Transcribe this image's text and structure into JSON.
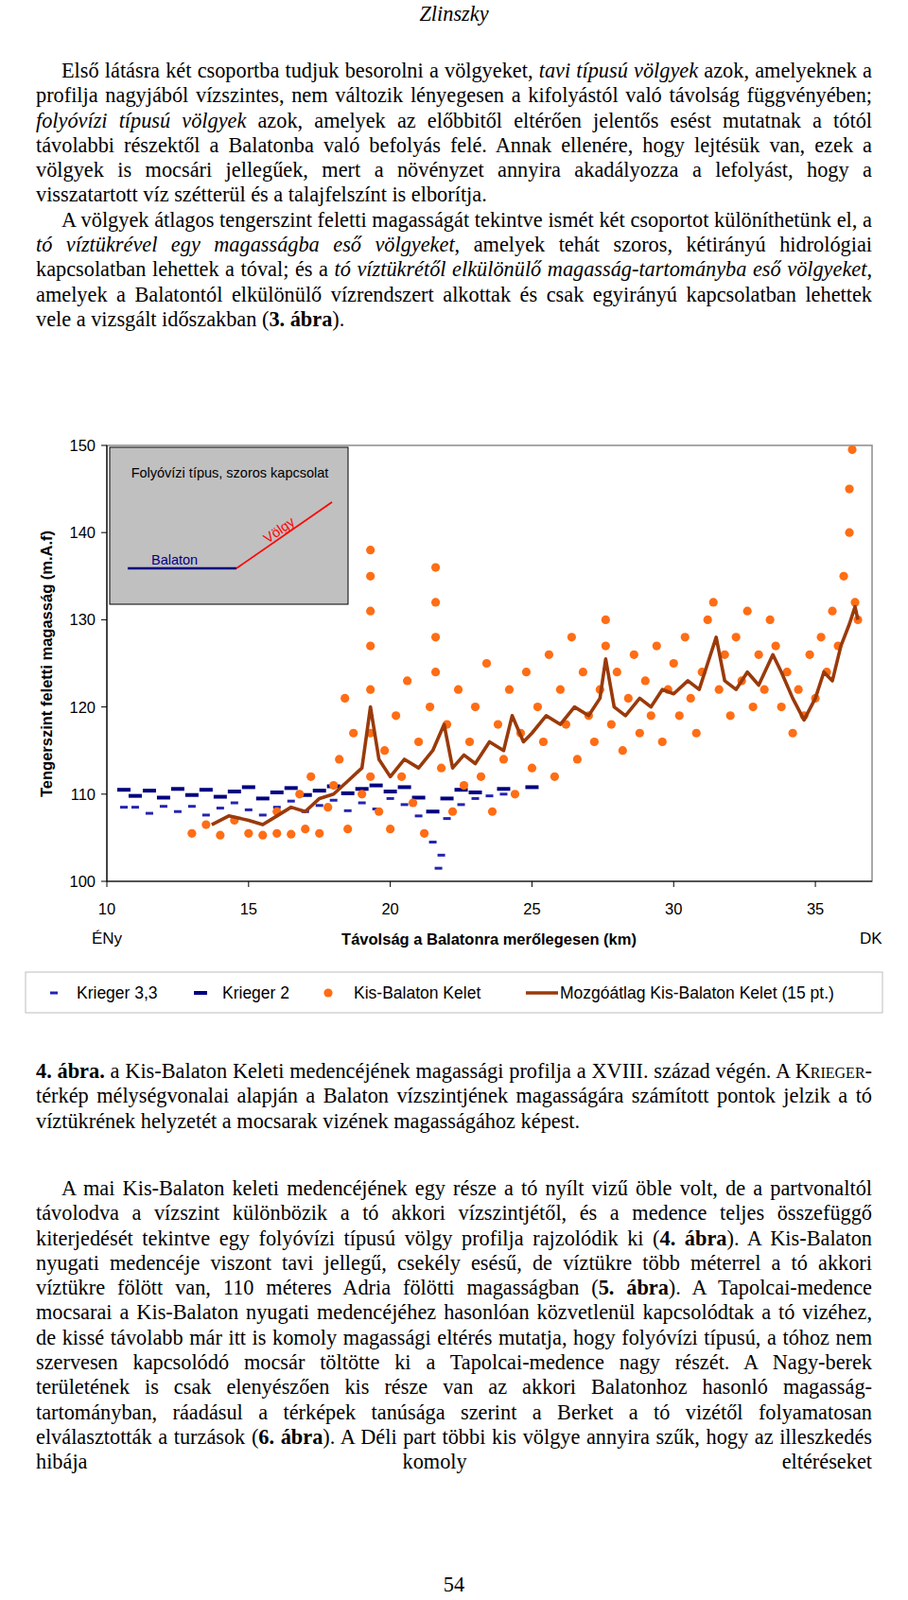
{
  "header": {
    "title": "Zlinszky"
  },
  "body_top": [
    {
      "runs": [
        {
          "text": "Első látásra két csoportba tudjuk besorolni a völgyeket, "
        },
        {
          "text": "tavi típusú völgyek",
          "style": "italic"
        },
        {
          "text": " azok, amelyeknek a profilja nagyjából vízszintes, nem változik lényegesen a kifolyástól való távolság függvényében; "
        },
        {
          "text": "folyóvízi típusú völgyek",
          "style": "italic"
        },
        {
          "text": " azok, amelyek az előbbitől eltérően jelentős esést mutatnak a tótól távolabbi részektől a Balatonba való befolyás felé. Annak ellenére, hogy lejtésük van, ezek a völgyek is mocsári jellegűek, mert a növényzet annyira akadályozza a lefolyást, hogy a visszatartott víz szétterül és a talajfelszínt is elborítja."
        }
      ]
    },
    {
      "runs": [
        {
          "text": "A völgyek átlagos tengerszint feletti magasságát tekintve ismét két csoportot különíthetünk el, a "
        },
        {
          "text": "tó víztükrével egy magasságba eső völgyeket",
          "style": "italic"
        },
        {
          "text": ", amelyek tehát szoros, kétirányú hidrológiai kapcsolatban lehettek a tóval; és a "
        },
        {
          "text": "tó víztükrétől elkülönülő magasság-tartományba eső völgyeket",
          "style": "italic"
        },
        {
          "text": ", amelyek a Balatontól elkülönülő vízrendszert alkottak és csak egyirányú kapcsolatban lehettek vele a vizsgált időszakban ("
        },
        {
          "text": "3. ábra",
          "style": "bold"
        },
        {
          "text": ")."
        }
      ]
    }
  ],
  "chart_data": {
    "type": "scatter",
    "xlabel": "Távolság a Balatonra merőlegesen (km)",
    "ylabel": "Tengerszint feletti magasság (m.A.f)",
    "annotations": {
      "inset_title": "Folyóvízi típus, szoros kapcsolat",
      "inset_lake": "Balaton",
      "inset_valley": "Völgy",
      "left_end": "ÉNy",
      "right_end": "DK"
    },
    "xlim": [
      10,
      37
    ],
    "xticks": [
      10,
      15,
      20,
      25,
      30,
      35
    ],
    "ylim": [
      100,
      150
    ],
    "yticks": [
      100,
      110,
      120,
      130,
      140,
      150
    ],
    "grid": false,
    "legend": "bottom",
    "series": [
      {
        "name": "Krieger 3,3",
        "color": "#2424b0",
        "marker": "short_dash",
        "x": [
          10.6,
          11.0,
          11.5,
          12.0,
          12.5,
          13.0,
          13.5,
          14.0,
          14.5,
          15.0,
          15.5,
          16.0,
          16.5,
          17.0,
          17.5,
          18.0,
          18.5,
          19.0,
          19.5,
          20.0,
          20.5,
          21.0,
          21.5,
          21.7,
          21.8,
          22.0,
          22.5,
          23.0,
          23.5,
          24.0
        ],
        "values": [
          108.5,
          108.5,
          107.8,
          108.6,
          108.0,
          108.6,
          107.6,
          108.4,
          109.0,
          108.2,
          107.6,
          108.5,
          109.2,
          108.0,
          108.7,
          109.3,
          108.1,
          109.0,
          108.3,
          109.5,
          108.8,
          107.5,
          104.5,
          101.5,
          103.0,
          107.2,
          108.8,
          109.5,
          109.8,
          110.0
        ]
      },
      {
        "name": "Krieger 2",
        "color": "#000080",
        "marker": "dash",
        "x": [
          10.6,
          11.0,
          11.5,
          12.0,
          12.5,
          13.0,
          13.5,
          14.0,
          14.5,
          15.0,
          15.5,
          16.0,
          16.5,
          17.0,
          17.5,
          18.0,
          18.5,
          19.0,
          19.5,
          20.0,
          20.5,
          21.0,
          21.5,
          22.0,
          22.5,
          23.0,
          24.0,
          25.0
        ],
        "values": [
          110.5,
          109.8,
          110.4,
          109.6,
          110.6,
          109.9,
          110.5,
          109.7,
          110.3,
          110.8,
          109.5,
          110.2,
          110.7,
          109.9,
          110.4,
          110.9,
          110.1,
          110.6,
          111.0,
          110.3,
          110.8,
          109.6,
          108.0,
          109.5,
          110.5,
          110.2,
          110.6,
          110.8
        ]
      },
      {
        "name": "Kis-Balaton Kelet",
        "color": "#ff6d14",
        "marker": "circle",
        "x": [
          13.0,
          13.5,
          14.0,
          14.5,
          15.0,
          15.5,
          16,
          16,
          16.5,
          16.8,
          17,
          17.2,
          17.5,
          17.8,
          18,
          18.2,
          18.4,
          18.5,
          18.7,
          19,
          19.3,
          19.3,
          19.3,
          19.3,
          19.3,
          19.3,
          19.3,
          19.6,
          19.8,
          20,
          20.2,
          20.4,
          20.6,
          20.8,
          21,
          21.2,
          21.4,
          21.6,
          21.6,
          21.6,
          21.6,
          21.8,
          22,
          22.2,
          22.4,
          22.6,
          22.8,
          23,
          23.2,
          23.4,
          23.6,
          23.8,
          24,
          24.2,
          24.4,
          24.6,
          24.8,
          25,
          25.2,
          25.4,
          25.6,
          25.8,
          26,
          26.2,
          26.4,
          26.6,
          26.8,
          27,
          27.2,
          27.4,
          27.6,
          27.6,
          27.8,
          28,
          28.2,
          28.4,
          28.6,
          28.8,
          29,
          29.2,
          29.4,
          29.6,
          29.8,
          30,
          30.2,
          30.4,
          30.6,
          30.8,
          31,
          31.2,
          31.4,
          31.6,
          31.8,
          32,
          32.2,
          32.4,
          32.6,
          32.8,
          33,
          33.2,
          33.4,
          33.6,
          33.8,
          34,
          34.2,
          34.4,
          34.6,
          34.8,
          35,
          35.2,
          35.4,
          35.6,
          35.8,
          36,
          36.2,
          36.2,
          36.3,
          36.4,
          36.5
        ],
        "values": [
          105.5,
          106.5,
          105.3,
          107.0,
          105.5,
          105.3,
          105.5,
          108,
          105.4,
          110,
          106,
          112,
          105.5,
          108.5,
          111,
          114,
          121,
          106,
          117,
          110,
          138,
          135,
          131,
          127,
          122,
          117,
          112,
          108,
          115,
          106,
          119,
          112,
          123,
          109,
          116,
          105.5,
          120,
          136,
          132,
          128,
          124,
          113,
          118,
          108,
          122,
          111,
          116,
          120,
          112,
          125,
          108,
          118,
          114,
          122,
          110,
          117,
          124,
          113,
          120,
          116,
          126,
          112,
          122,
          118,
          128,
          114,
          124,
          119,
          116,
          122,
          130,
          127,
          118,
          124,
          115,
          121,
          126,
          117,
          123,
          119,
          127,
          116,
          122,
          125,
          119,
          128,
          121,
          117,
          124,
          130,
          132,
          122,
          126,
          119,
          128,
          123,
          131,
          120,
          126,
          122,
          130,
          127,
          120,
          124,
          117,
          122,
          119,
          126,
          121,
          128,
          124,
          131,
          127,
          135,
          140,
          145,
          149.5,
          132,
          130
        ]
      },
      {
        "name": "Mozgóátlag Kis-Balaton Kelet (15 pt.)",
        "color": "#9a3a0a",
        "type": "line",
        "line_style": "solid",
        "x": [
          13.7,
          14.3,
          15,
          15.5,
          16,
          16.5,
          17,
          17.5,
          18,
          18.5,
          19,
          19.3,
          19.6,
          20,
          20.5,
          21,
          21.5,
          21.9,
          22.2,
          22.6,
          23,
          23.5,
          24,
          24.3,
          24.7,
          25,
          25.5,
          26,
          26.5,
          27,
          27.4,
          27.6,
          27.9,
          28.3,
          28.8,
          29.2,
          29.6,
          30,
          30.5,
          30.9,
          31.2,
          31.5,
          31.8,
          32.2,
          32.6,
          33,
          33.5,
          33.8,
          34.2,
          34.6,
          35,
          35.3,
          35.6,
          35.9,
          36.2,
          36.4,
          36.5
        ],
        "values": [
          106.5,
          107.5,
          107,
          106.5,
          107.5,
          108.5,
          108,
          109.5,
          110,
          111.5,
          113,
          120,
          114,
          112,
          114,
          113,
          115,
          118,
          113,
          114.5,
          113.5,
          116,
          115,
          119,
          116,
          117,
          119,
          118,
          120,
          119,
          121,
          125.5,
          120,
          119,
          121,
          120,
          122,
          121.5,
          123,
          122,
          125,
          128,
          123,
          122,
          124,
          122.5,
          126,
          124,
          121,
          118.5,
          121,
          124,
          123,
          127,
          129.5,
          131.5,
          130
        ]
      }
    ]
  },
  "caption": {
    "runs": [
      {
        "text": "4. ábra.",
        "style": "bold"
      },
      {
        "text": " a Kis-Balaton Keleti medencéjének magassági profilja a XVIII. század végén. A "
      },
      {
        "text": "Krieger",
        "style": "smallcaps"
      },
      {
        "text": "-térkép mélységvonalai alapján a Balaton vízszintjének magasságára számított pontok jelzik a tó víztükrének helyzetét a mocsarak vizének magasságához képest."
      }
    ]
  },
  "body_bottom": [
    {
      "runs": [
        {
          "text": "A mai Kis-Balaton keleti medencéjének egy része a tó nyílt vizű öble volt, de a partvonaltól távolodva a vízszint különbözik a tó akkori vízszintjétől, és a medence teljes összefüggő kiterjedését tekintve egy folyóvízi típusú völgy profilja rajzolódik ki ("
        },
        {
          "text": "4. ábra",
          "style": "bold"
        },
        {
          "text": "). A Kis-Balaton nyugati medencéje viszont tavi jellegű, csekély esésű, de víztükre több méterrel a tó akkori víztükre fölött van, 110 méteres Adria fölötti magasságban ("
        },
        {
          "text": "5. ábra",
          "style": "bold"
        },
        {
          "text": "). A Tapolcai-medence mocsarai a Kis-Balaton nyugati medencéjéhez hasonlóan közvetlenül kapcsolódtak a tó vizéhez, de kissé távolabb már itt is komoly magassági eltérés mutatja, hogy folyóvízi típusú, a tóhoz nem szervesen kapcsolódó mocsár töltötte ki a Tapolcai-medence nagy részét. A Nagy-berek területének is csak elenyészően kis része van az akkori Balatonhoz hasonló magasság-tartományban, ráadásul a térképek tanúsága szerint a Berket a tó vizétől folyamatosan elválasztották a turzások ("
        },
        {
          "text": "6. ábra",
          "style": "bold"
        },
        {
          "text": "). A Déli part többi kis völgye annyira szűk, hogy az illeszkedés hibája komoly eltéréseket"
        }
      ]
    }
  ],
  "page_number": "54"
}
